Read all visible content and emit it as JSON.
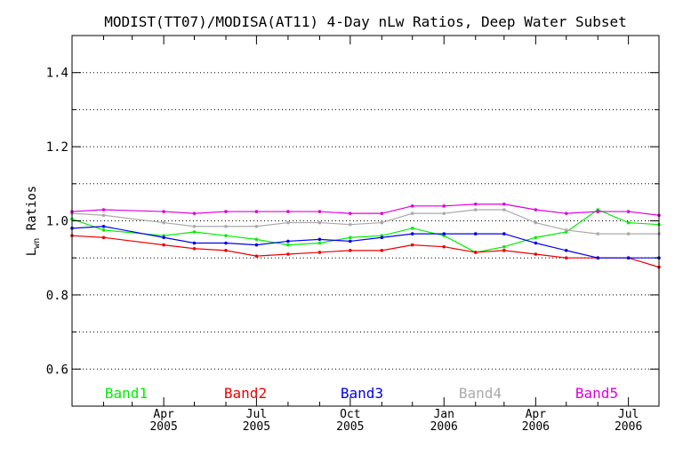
{
  "chart_data": {
    "type": "line",
    "title": "MODIST(TT07)/MODISA(AT11) 4-Day nLw Ratios, Deep Water Subset",
    "ylabel_main": "L",
    "ylabel_sub": "wn",
    "ylabel_rest": " Ratios",
    "ylim": [
      0.5,
      1.5
    ],
    "y_ticks": [
      0.6,
      0.8,
      1.0,
      1.2,
      1.4
    ],
    "y_tick_labels": [
      "0.6",
      "0.8",
      "1.0",
      "1.2",
      "1.4"
    ],
    "y_gridlines": [
      0.6,
      0.7,
      0.8,
      0.9,
      1.0,
      1.1,
      1.2,
      1.3,
      1.4
    ],
    "grid": "horizontal dotted",
    "xlim": [
      "2005-01-01",
      "2006-07-31"
    ],
    "x_ticks": [
      {
        "date": "2005-04-01",
        "month": "Apr",
        "year": "2005"
      },
      {
        "date": "2005-07-01",
        "month": "Jul",
        "year": "2005"
      },
      {
        "date": "2005-10-01",
        "month": "Oct",
        "year": "2005"
      },
      {
        "date": "2006-01-01",
        "month": "Jan",
        "year": "2006"
      },
      {
        "date": "2006-04-01",
        "month": "Apr",
        "year": "2006"
      },
      {
        "date": "2006-07-01",
        "month": "Jul",
        "year": "2006"
      }
    ],
    "x": [
      "2005-01-01",
      "2005-02-01",
      "2005-04-01",
      "2005-05-01",
      "2005-06-01",
      "2005-07-01",
      "2005-08-01",
      "2005-09-01",
      "2005-10-01",
      "2005-11-01",
      "2005-12-01",
      "2006-01-01",
      "2006-02-01",
      "2006-03-01",
      "2006-04-01",
      "2006-05-01",
      "2006-06-01",
      "2006-07-01",
      "2006-07-31"
    ],
    "series": [
      {
        "name": "Band1",
        "color": "#00ee00",
        "values": [
          1.005,
          0.975,
          0.96,
          0.97,
          0.96,
          0.95,
          0.935,
          0.94,
          0.955,
          0.96,
          0.98,
          0.96,
          0.915,
          0.93,
          0.955,
          0.97,
          1.03,
          0.995,
          0.99
        ]
      },
      {
        "name": "Band2",
        "color": "#ee0000",
        "values": [
          0.96,
          0.955,
          0.935,
          0.925,
          0.92,
          0.905,
          0.91,
          0.915,
          0.92,
          0.92,
          0.935,
          0.93,
          0.915,
          0.92,
          0.91,
          0.9,
          0.9,
          0.9,
          0.875
        ]
      },
      {
        "name": "Band3",
        "color": "#0000ee",
        "values": [
          0.98,
          0.985,
          0.955,
          0.94,
          0.94,
          0.935,
          0.945,
          0.95,
          0.945,
          0.955,
          0.965,
          0.965,
          0.965,
          0.965,
          0.94,
          0.92,
          0.9,
          0.9,
          0.9
        ]
      },
      {
        "name": "Band4",
        "color": "#aaaaaa",
        "values": [
          1.02,
          1.015,
          0.995,
          0.985,
          0.985,
          0.985,
          0.995,
          0.995,
          0.99,
          0.995,
          1.02,
          1.02,
          1.03,
          1.03,
          0.995,
          0.975,
          0.965,
          0.965,
          0.965
        ]
      },
      {
        "name": "Band5",
        "color": "#dd00dd",
        "values": [
          1.025,
          1.03,
          1.025,
          1.02,
          1.025,
          1.025,
          1.025,
          1.025,
          1.02,
          1.02,
          1.04,
          1.04,
          1.045,
          1.045,
          1.03,
          1.02,
          1.025,
          1.025,
          1.015
        ]
      }
    ]
  }
}
